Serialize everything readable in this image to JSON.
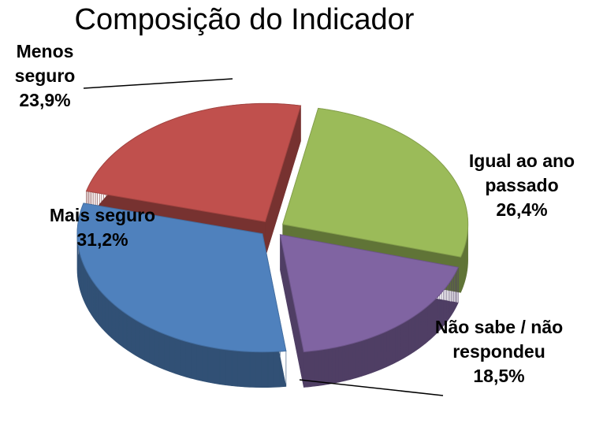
{
  "chart_data": {
    "type": "pie",
    "title": "Composição do Indicador",
    "categories": [
      "Menos seguro",
      "Igual ao ano passado",
      "Não sabe / não respondeu",
      "Mais seguro"
    ],
    "values": [
      23.9,
      26.4,
      18.5,
      31.2
    ],
    "value_labels": [
      "23,9%",
      "26,4%",
      "18,5%",
      "31,2%"
    ],
    "colors": [
      "#c0504d",
      "#9bbb59",
      "#8064a2",
      "#4f81bd"
    ]
  }
}
